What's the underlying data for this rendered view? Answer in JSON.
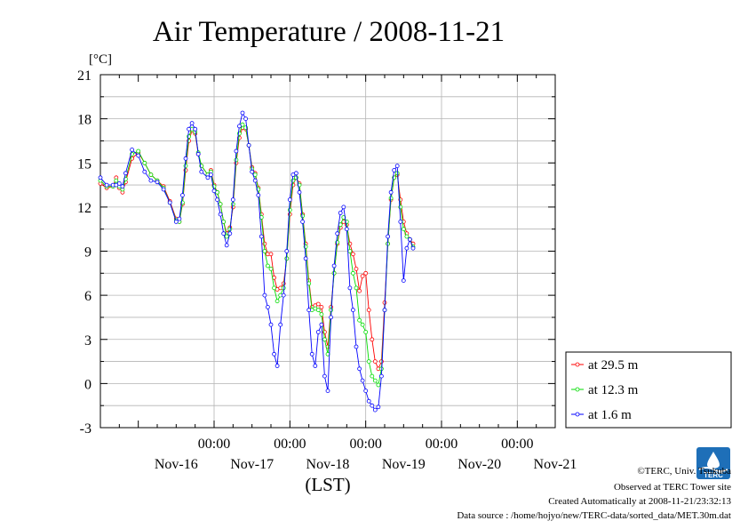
{
  "chart_data": {
    "type": "line",
    "title": "Air Temperature / 2008-11-21",
    "ylabel": "[°C]",
    "xlabel": "(LST)",
    "ylim": [
      -3,
      21
    ],
    "yticks": [
      -3,
      0,
      3,
      6,
      9,
      12,
      15,
      18,
      21
    ],
    "xlim": [
      0,
      144
    ],
    "x_unit": "hours since Nov-15 12:00 LST",
    "x_major_ticks": [
      {
        "x": 36,
        "time_label": "00:00",
        "day_label": "Nov-16"
      },
      {
        "x": 60,
        "time_label": "00:00",
        "day_label": "Nov-17"
      },
      {
        "x": 84,
        "time_label": "00:00",
        "day_label": "Nov-18"
      },
      {
        "x": 108,
        "time_label": "00:00",
        "day_label": "Nov-19"
      },
      {
        "x": 132,
        "time_label": "00:00",
        "day_label": "Nov-20"
      }
    ],
    "day_labels": [
      {
        "x": 24,
        "label": "Nov-16"
      },
      {
        "x": 48,
        "label": "Nov-17"
      },
      {
        "x": 72,
        "label": "Nov-18"
      },
      {
        "x": 96,
        "label": "Nov-19"
      },
      {
        "x": 120,
        "label": "Nov-20"
      },
      {
        "x": 144,
        "label": "Nov-21"
      }
    ],
    "series": [
      {
        "name": "at 29.5 m",
        "color": "#ff0000",
        "points": [
          [
            0,
            13.6
          ],
          [
            2,
            13.3
          ],
          [
            4,
            13.4
          ],
          [
            5,
            14
          ],
          [
            6,
            13.3
          ],
          [
            7,
            13.0
          ],
          [
            8,
            13.7
          ],
          [
            10,
            15.3
          ],
          [
            12,
            15.7
          ],
          [
            14,
            15.0
          ],
          [
            16,
            14.2
          ],
          [
            18,
            13.8
          ],
          [
            20,
            13.4
          ],
          [
            22,
            12.4
          ],
          [
            24,
            11.2
          ],
          [
            25,
            11.0
          ],
          [
            26,
            12.2
          ],
          [
            27,
            14.5
          ],
          [
            28,
            16.5
          ],
          [
            29,
            17.2
          ],
          [
            30,
            17.0
          ],
          [
            31,
            15.6
          ],
          [
            32,
            14.8
          ],
          [
            34,
            14.2
          ],
          [
            35,
            14.5
          ],
          [
            36,
            13.5
          ],
          [
            37,
            13.0
          ],
          [
            38,
            12.2
          ],
          [
            39,
            11.0
          ],
          [
            40,
            10.2
          ],
          [
            41,
            10.6
          ],
          [
            42,
            12.0
          ],
          [
            43,
            15.0
          ],
          [
            44,
            16.7
          ],
          [
            45,
            17.4
          ],
          [
            46,
            17.3
          ],
          [
            47,
            16.2
          ],
          [
            48,
            14.7
          ],
          [
            49,
            14.3
          ],
          [
            50,
            13.3
          ],
          [
            51,
            11.5
          ],
          [
            52,
            9.5
          ],
          [
            53,
            8.8
          ],
          [
            54,
            8.8
          ],
          [
            55,
            7.2
          ],
          [
            56,
            6.4
          ],
          [
            57,
            6.5
          ],
          [
            58,
            6.8
          ],
          [
            59,
            8.5
          ],
          [
            60,
            11.5
          ],
          [
            61,
            13.5
          ],
          [
            62,
            14.0
          ],
          [
            63,
            13.6
          ],
          [
            64,
            11.5
          ],
          [
            65,
            9.5
          ],
          [
            66,
            7.0
          ],
          [
            67,
            5.2
          ],
          [
            68,
            5.3
          ],
          [
            69,
            5.4
          ],
          [
            70,
            5.2
          ],
          [
            71,
            3.5
          ],
          [
            72,
            2.5
          ],
          [
            73,
            5.2
          ],
          [
            74,
            7.5
          ],
          [
            75,
            9.5
          ],
          [
            76,
            10.6
          ],
          [
            77,
            11.0
          ],
          [
            78,
            10.8
          ],
          [
            79,
            9.5
          ],
          [
            80,
            8.8
          ],
          [
            81,
            7.8
          ],
          [
            82,
            6.3
          ],
          [
            83,
            7.3
          ],
          [
            84,
            7.5
          ],
          [
            85,
            5.0
          ],
          [
            86,
            3.0
          ],
          [
            87,
            1.5
          ],
          [
            88,
            1.0
          ],
          [
            89,
            1.5
          ],
          [
            90,
            5.5
          ],
          [
            91,
            9.5
          ],
          [
            92,
            12.5
          ],
          [
            93,
            14.0
          ],
          [
            94,
            14.2
          ],
          [
            95,
            12.5
          ],
          [
            96,
            11.0
          ],
          [
            97,
            10.2
          ],
          [
            98,
            9.8
          ],
          [
            99,
            9.5
          ]
        ]
      },
      {
        "name": "at 12.3 m",
        "color": "#00dd00",
        "points": [
          [
            0,
            13.8
          ],
          [
            2,
            13.4
          ],
          [
            4,
            13.4
          ],
          [
            5,
            13.8
          ],
          [
            6,
            13.4
          ],
          [
            7,
            13.2
          ],
          [
            8,
            13.9
          ],
          [
            10,
            15.6
          ],
          [
            12,
            15.8
          ],
          [
            14,
            15.0
          ],
          [
            16,
            14.2
          ],
          [
            18,
            13.8
          ],
          [
            20,
            13.3
          ],
          [
            22,
            12.3
          ],
          [
            24,
            11.1
          ],
          [
            25,
            11.0
          ],
          [
            26,
            12.3
          ],
          [
            27,
            14.8
          ],
          [
            28,
            16.8
          ],
          [
            29,
            17.3
          ],
          [
            30,
            17.1
          ],
          [
            31,
            15.7
          ],
          [
            32,
            14.8
          ],
          [
            34,
            14.2
          ],
          [
            35,
            14.4
          ],
          [
            36,
            13.4
          ],
          [
            37,
            13.0
          ],
          [
            38,
            12.2
          ],
          [
            39,
            11.0
          ],
          [
            40,
            10.0
          ],
          [
            41,
            10.5
          ],
          [
            42,
            12.2
          ],
          [
            43,
            15.2
          ],
          [
            44,
            17.0
          ],
          [
            45,
            17.6
          ],
          [
            46,
            17.4
          ],
          [
            47,
            16.2
          ],
          [
            48,
            14.6
          ],
          [
            49,
            14.2
          ],
          [
            50,
            13.2
          ],
          [
            51,
            11.3
          ],
          [
            52,
            9.0
          ],
          [
            53,
            8.0
          ],
          [
            54,
            7.8
          ],
          [
            55,
            6.5
          ],
          [
            56,
            5.6
          ],
          [
            57,
            6.0
          ],
          [
            58,
            6.5
          ],
          [
            59,
            8.5
          ],
          [
            60,
            11.8
          ],
          [
            61,
            13.8
          ],
          [
            62,
            14.0
          ],
          [
            63,
            13.5
          ],
          [
            64,
            11.4
          ],
          [
            65,
            9.3
          ],
          [
            66,
            6.8
          ],
          [
            67,
            5.0
          ],
          [
            68,
            5.1
          ],
          [
            69,
            5.0
          ],
          [
            70,
            4.7
          ],
          [
            71,
            3.0
          ],
          [
            72,
            2.0
          ],
          [
            73,
            5.0
          ],
          [
            74,
            7.5
          ],
          [
            75,
            9.6
          ],
          [
            76,
            10.8
          ],
          [
            77,
            11.3
          ],
          [
            78,
            11.0
          ],
          [
            79,
            9.0
          ],
          [
            80,
            7.5
          ],
          [
            81,
            6.5
          ],
          [
            82,
            4.3
          ],
          [
            83,
            4.0
          ],
          [
            84,
            3.5
          ],
          [
            85,
            1.5
          ],
          [
            86,
            0.5
          ],
          [
            87,
            0.2
          ],
          [
            88,
            -0.1
          ],
          [
            89,
            1.0
          ],
          [
            90,
            5.0
          ],
          [
            91,
            9.5
          ],
          [
            92,
            12.6
          ],
          [
            93,
            14.0
          ],
          [
            94,
            14.3
          ],
          [
            95,
            12.0
          ],
          [
            96,
            10.5
          ],
          [
            97,
            10.0
          ],
          [
            98,
            9.8
          ],
          [
            99,
            9.3
          ]
        ]
      },
      {
        "name": "at 1.6 m",
        "color": "#0000ff",
        "points": [
          [
            0,
            14.0
          ],
          [
            2,
            13.5
          ],
          [
            4,
            13.5
          ],
          [
            5,
            13.5
          ],
          [
            6,
            13.6
          ],
          [
            7,
            13.4
          ],
          [
            8,
            14.3
          ],
          [
            10,
            15.9
          ],
          [
            12,
            15.5
          ],
          [
            14,
            14.4
          ],
          [
            16,
            13.8
          ],
          [
            18,
            13.7
          ],
          [
            20,
            13.2
          ],
          [
            22,
            12.3
          ],
          [
            24,
            11.0
          ],
          [
            25,
            11.2
          ],
          [
            26,
            12.8
          ],
          [
            27,
            15.3
          ],
          [
            28,
            17.3
          ],
          [
            29,
            17.7
          ],
          [
            30,
            17.3
          ],
          [
            31,
            15.6
          ],
          [
            32,
            14.4
          ],
          [
            34,
            14.0
          ],
          [
            35,
            14.2
          ],
          [
            36,
            13.1
          ],
          [
            37,
            12.5
          ],
          [
            38,
            11.5
          ],
          [
            39,
            10.2
          ],
          [
            40,
            9.4
          ],
          [
            41,
            10.2
          ],
          [
            42,
            12.5
          ],
          [
            43,
            15.8
          ],
          [
            44,
            17.5
          ],
          [
            45,
            18.4
          ],
          [
            46,
            18.0
          ],
          [
            47,
            16.2
          ],
          [
            48,
            14.4
          ],
          [
            49,
            13.8
          ],
          [
            50,
            12.8
          ],
          [
            51,
            10.0
          ],
          [
            52,
            6.0
          ],
          [
            53,
            5.2
          ],
          [
            54,
            4.0
          ],
          [
            55,
            2.0
          ],
          [
            56,
            1.2
          ],
          [
            57,
            4.0
          ],
          [
            58,
            6.0
          ],
          [
            59,
            9.0
          ],
          [
            60,
            12.5
          ],
          [
            61,
            14.2
          ],
          [
            62,
            14.3
          ],
          [
            63,
            13.0
          ],
          [
            64,
            11.0
          ],
          [
            65,
            8.5
          ],
          [
            66,
            5.0
          ],
          [
            67,
            2.0
          ],
          [
            68,
            1.2
          ],
          [
            69,
            3.5
          ],
          [
            70,
            4.0
          ],
          [
            71,
            0.5
          ],
          [
            72,
            -0.5
          ],
          [
            73,
            4.5
          ],
          [
            74,
            8.0
          ],
          [
            75,
            10.2
          ],
          [
            76,
            11.6
          ],
          [
            77,
            12.0
          ],
          [
            78,
            10.5
          ],
          [
            79,
            6.5
          ],
          [
            80,
            5.0
          ],
          [
            81,
            2.5
          ],
          [
            82,
            1.0
          ],
          [
            83,
            0.2
          ],
          [
            84,
            -0.5
          ],
          [
            85,
            -1.2
          ],
          [
            86,
            -1.5
          ],
          [
            87,
            -1.8
          ],
          [
            88,
            -1.6
          ],
          [
            89,
            0.5
          ],
          [
            90,
            5.0
          ],
          [
            91,
            10.0
          ],
          [
            92,
            13.0
          ],
          [
            93,
            14.5
          ],
          [
            94,
            14.8
          ],
          [
            95,
            11.0
          ],
          [
            96,
            7.0
          ],
          [
            97,
            9.2
          ],
          [
            98,
            9.8
          ],
          [
            99,
            9.2
          ]
        ]
      }
    ],
    "legend_position": "right-bottom",
    "grid": true
  },
  "footer": {
    "copyright": "©TERC, Univ. Tsukuba",
    "site": "Observed at TERC Tower site",
    "created": "Created Automatically at 2008-11-21/23:32:13",
    "source": "Data source : /home/hojyo/new/TERC-data/sorted_data/MET.30m.dat"
  },
  "logo": {
    "text": "TERC",
    "color": "#1e6fb8"
  }
}
